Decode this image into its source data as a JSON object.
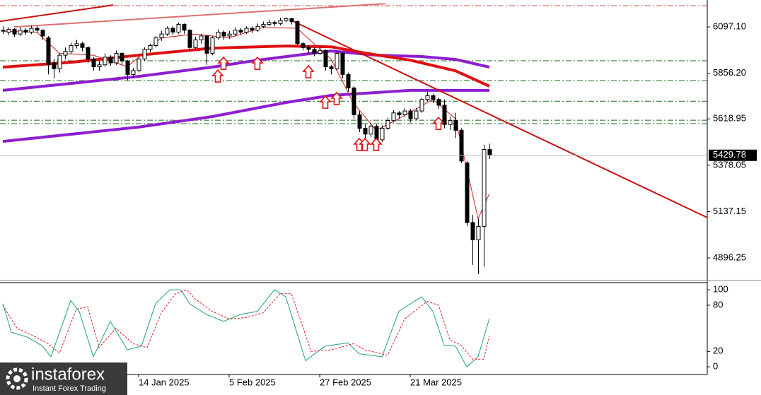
{
  "chart_data": [
    {
      "type": "candlestick",
      "xlim": [
        -0.5,
        124.5
      ],
      "ylim": [
        4786,
        6237
      ],
      "yticks": [
        {
          "value": 6097.1,
          "label": "6097.10"
        },
        {
          "value": 5856.2,
          "label": "5856.20"
        },
        5618.95,
        5378.05,
        5137.15,
        4896.25
      ],
      "up_color": "#ffffff",
      "down_color": "#000000",
      "edge_color": "#000000",
      "candles": [
        [
          6080,
          6100,
          6060,
          6075
        ],
        [
          6070,
          6095,
          6055,
          6085
        ],
        [
          6085,
          6090,
          6045,
          6060
        ],
        [
          6060,
          6095,
          6050,
          6080
        ],
        [
          6080,
          6090,
          6055,
          6070
        ],
        [
          6070,
          6105,
          6060,
          6090
        ],
        [
          6090,
          6100,
          6065,
          6080
        ],
        [
          6080,
          6085,
          6030,
          6050
        ],
        [
          6040,
          6050,
          5850,
          5900
        ],
        [
          5910,
          5930,
          5830,
          5880
        ],
        [
          5880,
          5960,
          5860,
          5950
        ],
        [
          5950,
          5990,
          5930,
          5970
        ],
        [
          5970,
          6015,
          5955,
          6000
        ],
        [
          6000,
          6030,
          5985,
          6010
        ],
        [
          6010,
          6020,
          5970,
          5990
        ],
        [
          5990,
          5995,
          5910,
          5930
        ],
        [
          5930,
          5940,
          5870,
          5890
        ],
        [
          5890,
          5920,
          5870,
          5900
        ],
        [
          5900,
          5960,
          5890,
          5940
        ],
        [
          5940,
          5950,
          5895,
          5910
        ],
        [
          5910,
          5975,
          5900,
          5960
        ],
        [
          5960,
          5965,
          5900,
          5920
        ],
        [
          5920,
          5925,
          5820,
          5850
        ],
        [
          5850,
          5885,
          5830,
          5870
        ],
        [
          5870,
          5940,
          5860,
          5930
        ],
        [
          5930,
          5990,
          5920,
          5980
        ],
        [
          5980,
          6010,
          5965,
          6000
        ],
        [
          6000,
          6050,
          5990,
          6040
        ],
        [
          6040,
          6075,
          6025,
          6060
        ],
        [
          6060,
          6100,
          6050,
          6090
        ],
        [
          6090,
          6100,
          6055,
          6070
        ],
        [
          6070,
          6120,
          6060,
          6110
        ],
        [
          6110,
          6115,
          6060,
          6080
        ],
        [
          6080,
          6085,
          5970,
          5990
        ],
        [
          5990,
          6045,
          5980,
          6030
        ],
        [
          6030,
          6060,
          6010,
          6050
        ],
        [
          6050,
          6055,
          5900,
          5960
        ],
        [
          5960,
          6050,
          5950,
          6040
        ],
        [
          6040,
          6085,
          6030,
          6070
        ],
        [
          6070,
          6080,
          6030,
          6050
        ],
        [
          6050,
          6075,
          6035,
          6060
        ],
        [
          6060,
          6095,
          6050,
          6080
        ],
        [
          6080,
          6090,
          6055,
          6070
        ],
        [
          6070,
          6100,
          6060,
          6090
        ],
        [
          6090,
          6100,
          6065,
          6080
        ],
        [
          6080,
          6115,
          6070,
          6100
        ],
        [
          6100,
          6125,
          6090,
          6110
        ],
        [
          6110,
          6135,
          6100,
          6120
        ],
        [
          6120,
          6130,
          6100,
          6115
        ],
        [
          6115,
          6145,
          6105,
          6130
        ],
        [
          6130,
          6147,
          6120,
          6140
        ],
        [
          6140,
          6145,
          6110,
          6125
        ],
        [
          6125,
          6130,
          5995,
          6010
        ],
        [
          6010,
          6020,
          5975,
          5990
        ],
        [
          5990,
          6000,
          5960,
          5980
        ],
        [
          5980,
          5990,
          5945,
          5960
        ],
        [
          5960,
          5990,
          5950,
          5975
        ],
        [
          5975,
          5980,
          5870,
          5890
        ],
        [
          5890,
          5900,
          5850,
          5880
        ],
        [
          5880,
          5970,
          5870,
          5960
        ],
        [
          5960,
          5965,
          5830,
          5850
        ],
        [
          5850,
          5860,
          5760,
          5780
        ],
        [
          5780,
          5790,
          5620,
          5640
        ],
        [
          5640,
          5660,
          5550,
          5570
        ],
        [
          5570,
          5590,
          5510,
          5540
        ],
        [
          5540,
          5600,
          5525,
          5580
        ],
        [
          5580,
          5590,
          5490,
          5510
        ],
        [
          5510,
          5585,
          5500,
          5570
        ],
        [
          5570,
          5625,
          5560,
          5610
        ],
        [
          5610,
          5665,
          5600,
          5650
        ],
        [
          5650,
          5660,
          5620,
          5640
        ],
        [
          5640,
          5675,
          5630,
          5660
        ],
        [
          5660,
          5670,
          5600,
          5620
        ],
        [
          5620,
          5675,
          5610,
          5660
        ],
        [
          5660,
          5730,
          5650,
          5720
        ],
        [
          5720,
          5760,
          5710,
          5740
        ],
        [
          5740,
          5750,
          5700,
          5720
        ],
        [
          5720,
          5730,
          5670,
          5690
        ],
        [
          5690,
          5720,
          5570,
          5590
        ],
        [
          5590,
          5630,
          5560,
          5610
        ],
        [
          5610,
          5650,
          5520,
          5560
        ],
        [
          5560,
          5570,
          5390,
          5400
        ],
        [
          5390,
          5400,
          5060,
          5080
        ],
        [
          5080,
          5120,
          4860,
          4990
        ],
        [
          4990,
          5100,
          4812,
          5060
        ],
        [
          5060,
          5485,
          4850,
          5460
        ],
        [
          5460,
          5490,
          5410,
          5429.78
        ]
      ],
      "series": [
        {
          "color": "#8e1ed0",
          "line_width": 4,
          "x": [
            0,
            24,
            37,
            50,
            58,
            72,
            86
          ],
          "values": [
            5502,
            5576,
            5631,
            5704,
            5741,
            5767,
            5767
          ]
        },
        {
          "color": "#8e1ed0",
          "line_width": 4,
          "x": [
            0,
            12,
            24,
            37,
            45,
            58,
            66,
            74,
            80,
            86
          ],
          "values": [
            5767,
            5803,
            5840,
            5888,
            5924,
            5972,
            5950,
            5943,
            5928,
            5888
          ]
        },
        {
          "color": "#e01010",
          "line_width": 4,
          "x": [
            0,
            12,
            24,
            37,
            50,
            58,
            64,
            72,
            80,
            86
          ],
          "values": [
            5888,
            5913,
            5950,
            5987,
            5998,
            5994,
            5961,
            5924,
            5869,
            5789
          ]
        },
        {
          "color": "#d02020",
          "line_width": 1,
          "x": [
            0,
            6,
            10,
            16,
            22,
            28,
            34,
            40,
            46,
            52,
            58,
            62,
            66,
            70,
            76,
            80,
            84,
            86
          ],
          "values": [
            6075,
            6070,
            5960,
            5950,
            5890,
            6040,
            6060,
            6040,
            6095,
            6090,
            5930,
            5700,
            5560,
            5620,
            5720,
            5620,
            5100,
            5230
          ]
        }
      ],
      "trendlines": [
        {
          "color": "#cc1010",
          "x": [
            50.75,
            124.5
          ],
          "values": [
            6134,
            5106
          ]
        },
        {
          "color": "#cc1010",
          "x": [
            -0.5,
            19.5
          ],
          "values": [
            6126,
            6211
          ]
        },
        {
          "color": "#dd7070",
          "x": [
            2,
            67.6
          ],
          "values": [
            6097,
            6218
          ]
        }
      ],
      "levels": [
        {
          "value": 6207,
          "color": "#d04040"
        },
        {
          "value": 5921,
          "color": "#1a6b1a"
        },
        {
          "value": 5818,
          "color": "#1a6b1a"
        },
        {
          "value": 5711,
          "color": "#1a6b1a"
        },
        {
          "value": 5612,
          "color": "#1a6b1a"
        },
        {
          "value": 5594,
          "color": "#1a6b1a"
        }
      ],
      "signals": {
        "color": "#e01010",
        "x": [
          38,
          39,
          45,
          54,
          57,
          59,
          63,
          64,
          66,
          77
        ],
        "values": [
          5840,
          5906,
          5906,
          5862,
          5704,
          5723,
          5484,
          5484,
          5484,
          5594
        ]
      }
    },
    {
      "type": "line",
      "xlim": [
        -0.5,
        124.5
      ],
      "ylim": [
        -10,
        109.3
      ],
      "yticks": [
        100,
        80,
        20,
        0
      ],
      "xticks": [
        {
          "value": 24,
          "label": "14 Jan 2025"
        },
        {
          "value": 40,
          "label": "5 Feb 2025"
        },
        {
          "value": 56,
          "label": "27 Feb 2025"
        },
        {
          "value": 72,
          "label": "21 Mar 2025"
        }
      ],
      "series": [
        {
          "color": "#20a080",
          "dash": false,
          "x": [
            0,
            1.5,
            4.5,
            7,
            8.5,
            12,
            13.5,
            16,
            19,
            22,
            24.5,
            27,
            29.5,
            31.5,
            33,
            36,
            39,
            42,
            45,
            48,
            50,
            53.5,
            57,
            61,
            63,
            67,
            70,
            74,
            76,
            78,
            80,
            82,
            84,
            86
          ],
          "values": [
            82,
            45,
            38,
            27,
            13,
            86,
            72,
            13,
            59,
            22,
            27,
            82,
            100,
            100,
            82,
            68,
            59,
            68,
            72,
            100,
            91,
            8,
            27,
            31,
            17,
            13,
            72,
            91,
            72,
            28,
            27,
            0,
            13,
            63
          ]
        },
        {
          "color": "#e02020",
          "dash": true,
          "x": [
            0,
            2.5,
            5.5,
            8,
            10,
            13,
            15,
            17,
            20,
            23,
            25.5,
            28,
            30.5,
            32.5,
            34,
            37,
            40,
            43,
            46,
            49,
            51,
            54.5,
            58,
            62,
            64,
            68,
            71,
            75,
            77,
            79,
            81,
            83,
            85,
            86
          ],
          "values": [
            80,
            50,
            40,
            30,
            18,
            75,
            78,
            25,
            50,
            30,
            25,
            70,
            95,
            100,
            88,
            72,
            62,
            64,
            70,
            95,
            95,
            20,
            22,
            30,
            22,
            15,
            62,
            85,
            80,
            35,
            28,
            10,
            10,
            40
          ]
        }
      ]
    }
  ],
  "watermark": {
    "brand": "instaforex",
    "tagline": "Instant Forex Trading"
  }
}
